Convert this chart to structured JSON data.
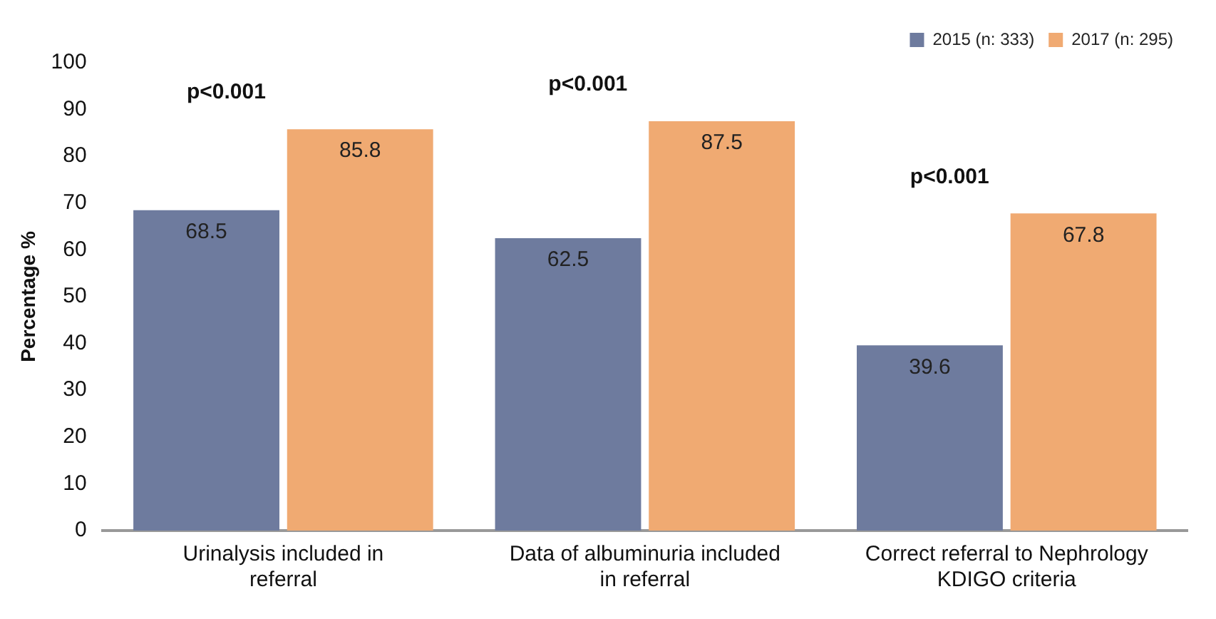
{
  "chart_data": {
    "type": "bar",
    "ylabel": "Percentage %",
    "categories": [
      "Urinalysis included in referral",
      "Data of albuminuria included in referral",
      "Correct referral to Nephrology KDIGO criteria"
    ],
    "series": [
      {
        "name": "2015 (n: 333)",
        "color": "#6e7b9e",
        "values": [
          68.5,
          62.5,
          39.6
        ]
      },
      {
        "name": "2017 (n: 295)",
        "color": "#f0aa72",
        "values": [
          85.8,
          87.5,
          67.8
        ]
      }
    ],
    "ylim": [
      0,
      100
    ],
    "yticks": [
      0,
      10,
      20,
      30,
      40,
      50,
      60,
      70,
      80,
      90,
      100
    ],
    "grid": false,
    "legend": "top right",
    "data_labels": true,
    "annotations": [
      "p<0.001",
      "p<0.001",
      "p<0.001"
    ]
  }
}
